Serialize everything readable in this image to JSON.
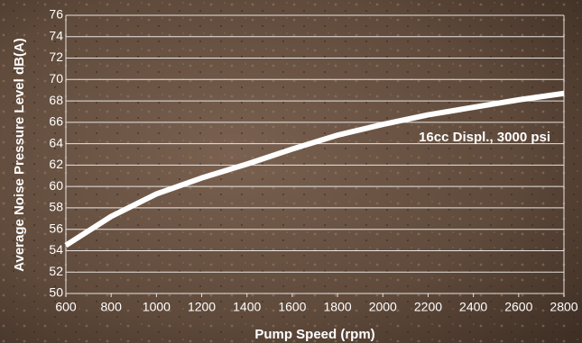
{
  "chart_data": {
    "type": "line",
    "x_label": "Pump Speed (rpm)",
    "y_label": "Average Noise Pressure Level dB(A)",
    "x": [
      600,
      800,
      1000,
      1200,
      1400,
      1600,
      1800,
      2000,
      2200,
      2400,
      2600,
      2800
    ],
    "series": [
      {
        "name": "16cc Displ., 3000 psi",
        "color": "#ffffff",
        "values": [
          54.5,
          57.2,
          59.3,
          60.8,
          62.1,
          63.5,
          64.8,
          65.8,
          66.7,
          67.4,
          68.1,
          68.7
        ]
      }
    ],
    "xlim": [
      600,
      2800
    ],
    "xticks": [
      600,
      800,
      1000,
      1200,
      1400,
      1600,
      1800,
      2000,
      2200,
      2400,
      2600,
      2800
    ],
    "ylim": [
      50,
      76
    ],
    "yticks": [
      50,
      52,
      54,
      56,
      58,
      60,
      62,
      64,
      66,
      68,
      70,
      72,
      74,
      76
    ],
    "grid": true
  }
}
